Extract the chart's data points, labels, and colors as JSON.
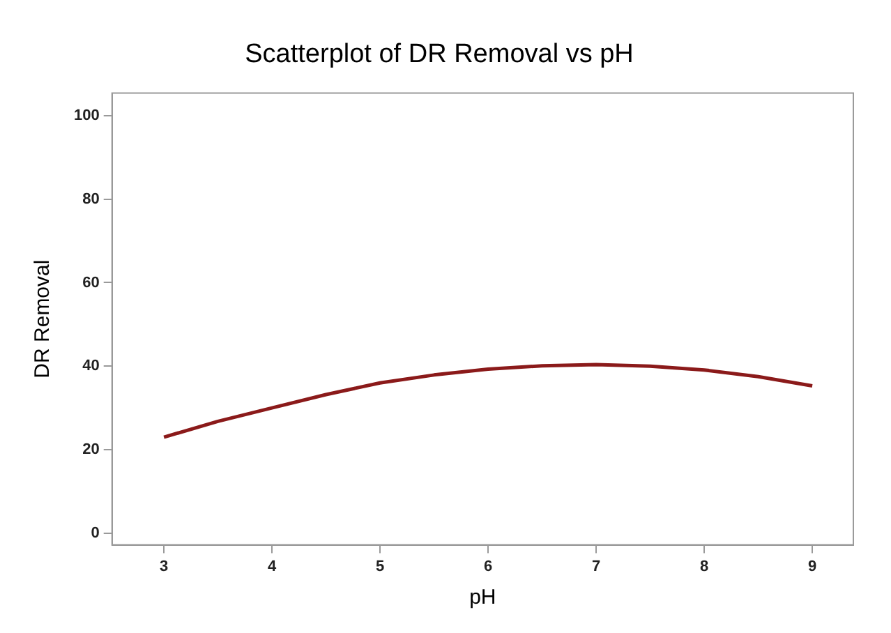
{
  "chart_data": {
    "type": "line",
    "title": "Scatterplot of DR Removal vs pH",
    "xlabel": "pH",
    "ylabel": "DR Removal",
    "x": [
      3,
      3.5,
      4,
      4.5,
      5,
      5.5,
      6,
      6.5,
      7,
      7.5,
      8,
      8.5,
      9
    ],
    "series": [
      {
        "color": "#8b1a1a",
        "values": [
          23,
          26.8,
          30,
          33.2,
          36,
          37.9,
          39.3,
          40.1,
          40.4,
          40,
          39.1,
          37.5,
          35.3
        ]
      }
    ],
    "xlim": [
      2.52,
      9.38
    ],
    "xticks": [
      3,
      4,
      5,
      6,
      7,
      8,
      9
    ],
    "ylim": [
      -2.8,
      105.4
    ],
    "yticks": [
      0,
      20,
      40,
      60,
      80,
      100
    ],
    "grid": false,
    "legend": false,
    "marker": "none",
    "line_style": "solid"
  }
}
